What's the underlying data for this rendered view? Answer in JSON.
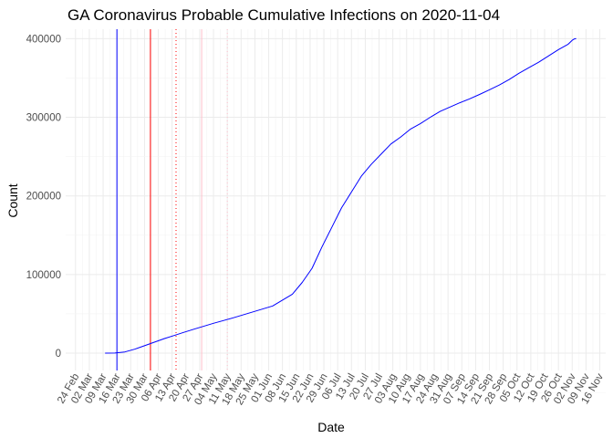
{
  "chart_data": {
    "type": "line",
    "title": "GA Coronavirus Probable Cumulative Infections on 2020-11-04",
    "xlabel": "Date",
    "ylabel": "Count",
    "x_start": "2020-02-24",
    "ylim": [
      -22000,
      412000
    ],
    "xlim_days": [
      -5,
      269
    ],
    "y_ticks": [
      0,
      100000,
      200000,
      300000,
      400000
    ],
    "y_tick_labels": [
      "0",
      "100000",
      "200000",
      "300000",
      "400000"
    ],
    "x_tick_labels": [
      "24 Feb",
      "02 Mar",
      "09 Mar",
      "16 Mar",
      "23 Mar",
      "30 Mar",
      "06 Apr",
      "13 Apr",
      "20 Apr",
      "27 Apr",
      "04 May",
      "11 May",
      "18 May",
      "25 May",
      "01 Jun",
      "08 Jun",
      "15 Jun",
      "22 Jun",
      "29 Jun",
      "06 Jul",
      "13 Jul",
      "20 Jul",
      "27 Jul",
      "03 Aug",
      "10 Aug",
      "17 Aug",
      "24 Aug",
      "31 Aug",
      "07 Sep",
      "14 Sep",
      "21 Sep",
      "28 Sep",
      "05 Oct",
      "12 Oct",
      "19 Oct",
      "26 Oct",
      "02 Nov",
      "09 Nov",
      "16 Nov"
    ],
    "grid": true,
    "series": [
      {
        "name": "cumulative infections",
        "color": "#0000ff",
        "x_days": [
          15,
          20,
          25,
          30,
          35,
          40,
          45,
          50,
          55,
          60,
          70,
          80,
          90,
          100,
          110,
          115,
          120,
          125,
          130,
          135,
          140,
          145,
          150,
          155,
          160,
          165,
          170,
          175,
          180,
          185,
          190,
          195,
          200,
          205,
          210,
          215,
          220,
          225,
          230,
          235,
          240,
          245,
          250,
          252,
          253,
          254
        ],
        "values": [
          0,
          200,
          1500,
          5000,
          9500,
          14000,
          18500,
          22500,
          26500,
          30500,
          38000,
          45000,
          52500,
          60000,
          75000,
          90000,
          108000,
          135000,
          160000,
          185000,
          205000,
          225000,
          240000,
          253000,
          266000,
          275000,
          285000,
          292000,
          300000,
          307500,
          313000,
          318500,
          323500,
          329000,
          335000,
          341000,
          348000,
          356000,
          363000,
          370000,
          378000,
          386000,
          393000,
          398000,
          399500,
          400000
        ]
      }
    ],
    "reference_lines": [
      {
        "day": 21,
        "color": "#0000ff",
        "style": "solid"
      },
      {
        "day": 38,
        "color": "#ff0000",
        "style": "solid"
      },
      {
        "day": 51,
        "color": "#ff0000",
        "style": "dotted"
      },
      {
        "day": 64,
        "color": "#ffc0cb",
        "style": "solid"
      },
      {
        "day": 77,
        "color": "#ffc0cb",
        "style": "dotted"
      }
    ]
  }
}
